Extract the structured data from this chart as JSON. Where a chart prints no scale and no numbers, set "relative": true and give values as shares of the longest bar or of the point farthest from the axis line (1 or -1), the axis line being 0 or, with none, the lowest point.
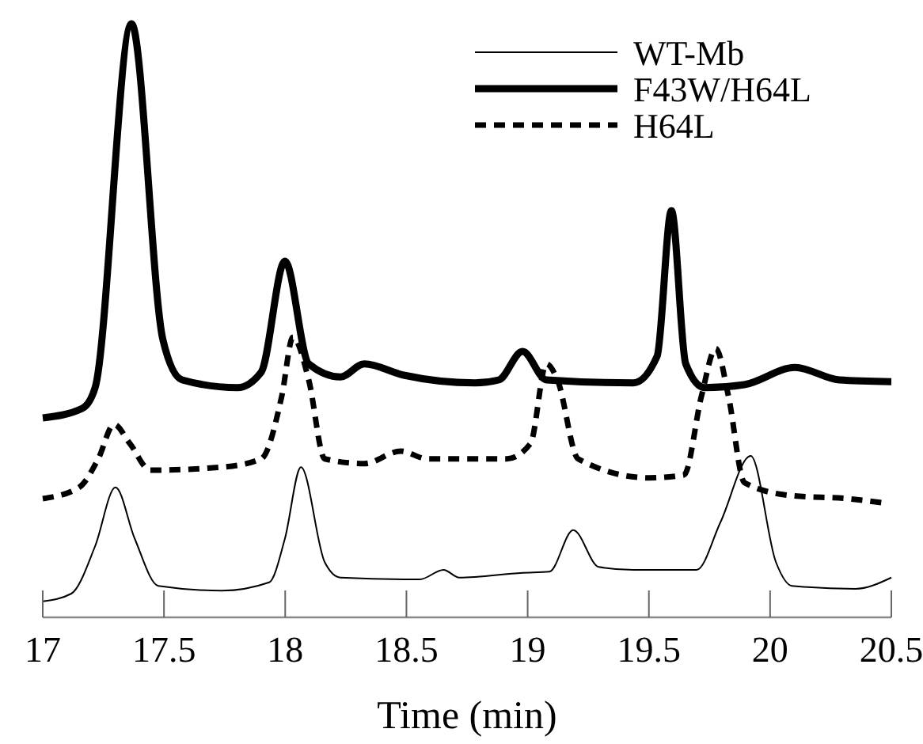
{
  "chart_data": {
    "type": "line",
    "relative": true,
    "xlabel": "Time (min)",
    "xlim": [
      17,
      20.5
    ],
    "xticks": [
      17,
      17.5,
      18,
      18.5,
      19,
      19.5,
      20,
      20.5
    ],
    "legend": "top right",
    "series": [
      {
        "name": "WT-Mb",
        "color": "#000000",
        "line_style": "solid",
        "x": [
          17,
          17.118,
          17.216,
          17.3,
          17.379,
          17.477,
          17.738,
          17.934,
          17.999,
          18.065,
          18.163,
          18.228,
          18.555,
          18.653,
          18.718,
          18.979,
          19.09,
          19.188,
          19.293,
          19.436,
          19.697,
          19.795,
          19.92,
          20.024,
          20.09,
          20.351,
          20.5
        ],
        "values": [
          0.027,
          0.04,
          0.12,
          0.219,
          0.133,
          0.053,
          0.045,
          0.059,
          0.133,
          0.253,
          0.093,
          0.067,
          0.064,
          0.08,
          0.067,
          0.075,
          0.077,
          0.147,
          0.085,
          0.08,
          0.08,
          0.16,
          0.272,
          0.093,
          0.053,
          0.048,
          0.067
        ]
      },
      {
        "name": "F43W/H64L",
        "color": "#000000",
        "line_style": "solid",
        "x": [
          17,
          17.163,
          17.216,
          17.366,
          17.496,
          17.575,
          17.803,
          17.901,
          17.999,
          18.097,
          18.228,
          18.326,
          18.489,
          18.783,
          18.881,
          18.979,
          19.077,
          19.436,
          19.534,
          19.593,
          19.652,
          19.73,
          19.894,
          20.103,
          20.285,
          20.5
        ],
        "values": [
          0.336,
          0.352,
          0.387,
          1,
          0.467,
          0.4,
          0.387,
          0.413,
          0.6,
          0.427,
          0.405,
          0.427,
          0.408,
          0.395,
          0.4,
          0.448,
          0.4,
          0.395,
          0.44,
          0.685,
          0.427,
          0.387,
          0.392,
          0.421,
          0.4,
          0.397
        ]
      },
      {
        "name": "H64L",
        "color": "#000000",
        "line_style": "dashed",
        "x": [
          17,
          17.15,
          17.229,
          17.294,
          17.359,
          17.444,
          17.738,
          17.901,
          17.986,
          18.032,
          18.097,
          18.163,
          18.326,
          18.476,
          18.587,
          18.914,
          19.012,
          19.077,
          19.123,
          19.208,
          19.502,
          19.645,
          19.717,
          19.776,
          19.828,
          19.894,
          20.09,
          20.318,
          20.481
        ],
        "values": [
          0.2,
          0.219,
          0.267,
          0.325,
          0.293,
          0.248,
          0.253,
          0.267,
          0.373,
          0.472,
          0.4,
          0.267,
          0.259,
          0.28,
          0.267,
          0.267,
          0.293,
          0.427,
          0.4,
          0.267,
          0.235,
          0.24,
          0.373,
          0.453,
          0.373,
          0.227,
          0.205,
          0.2,
          0.192
        ]
      }
    ]
  }
}
